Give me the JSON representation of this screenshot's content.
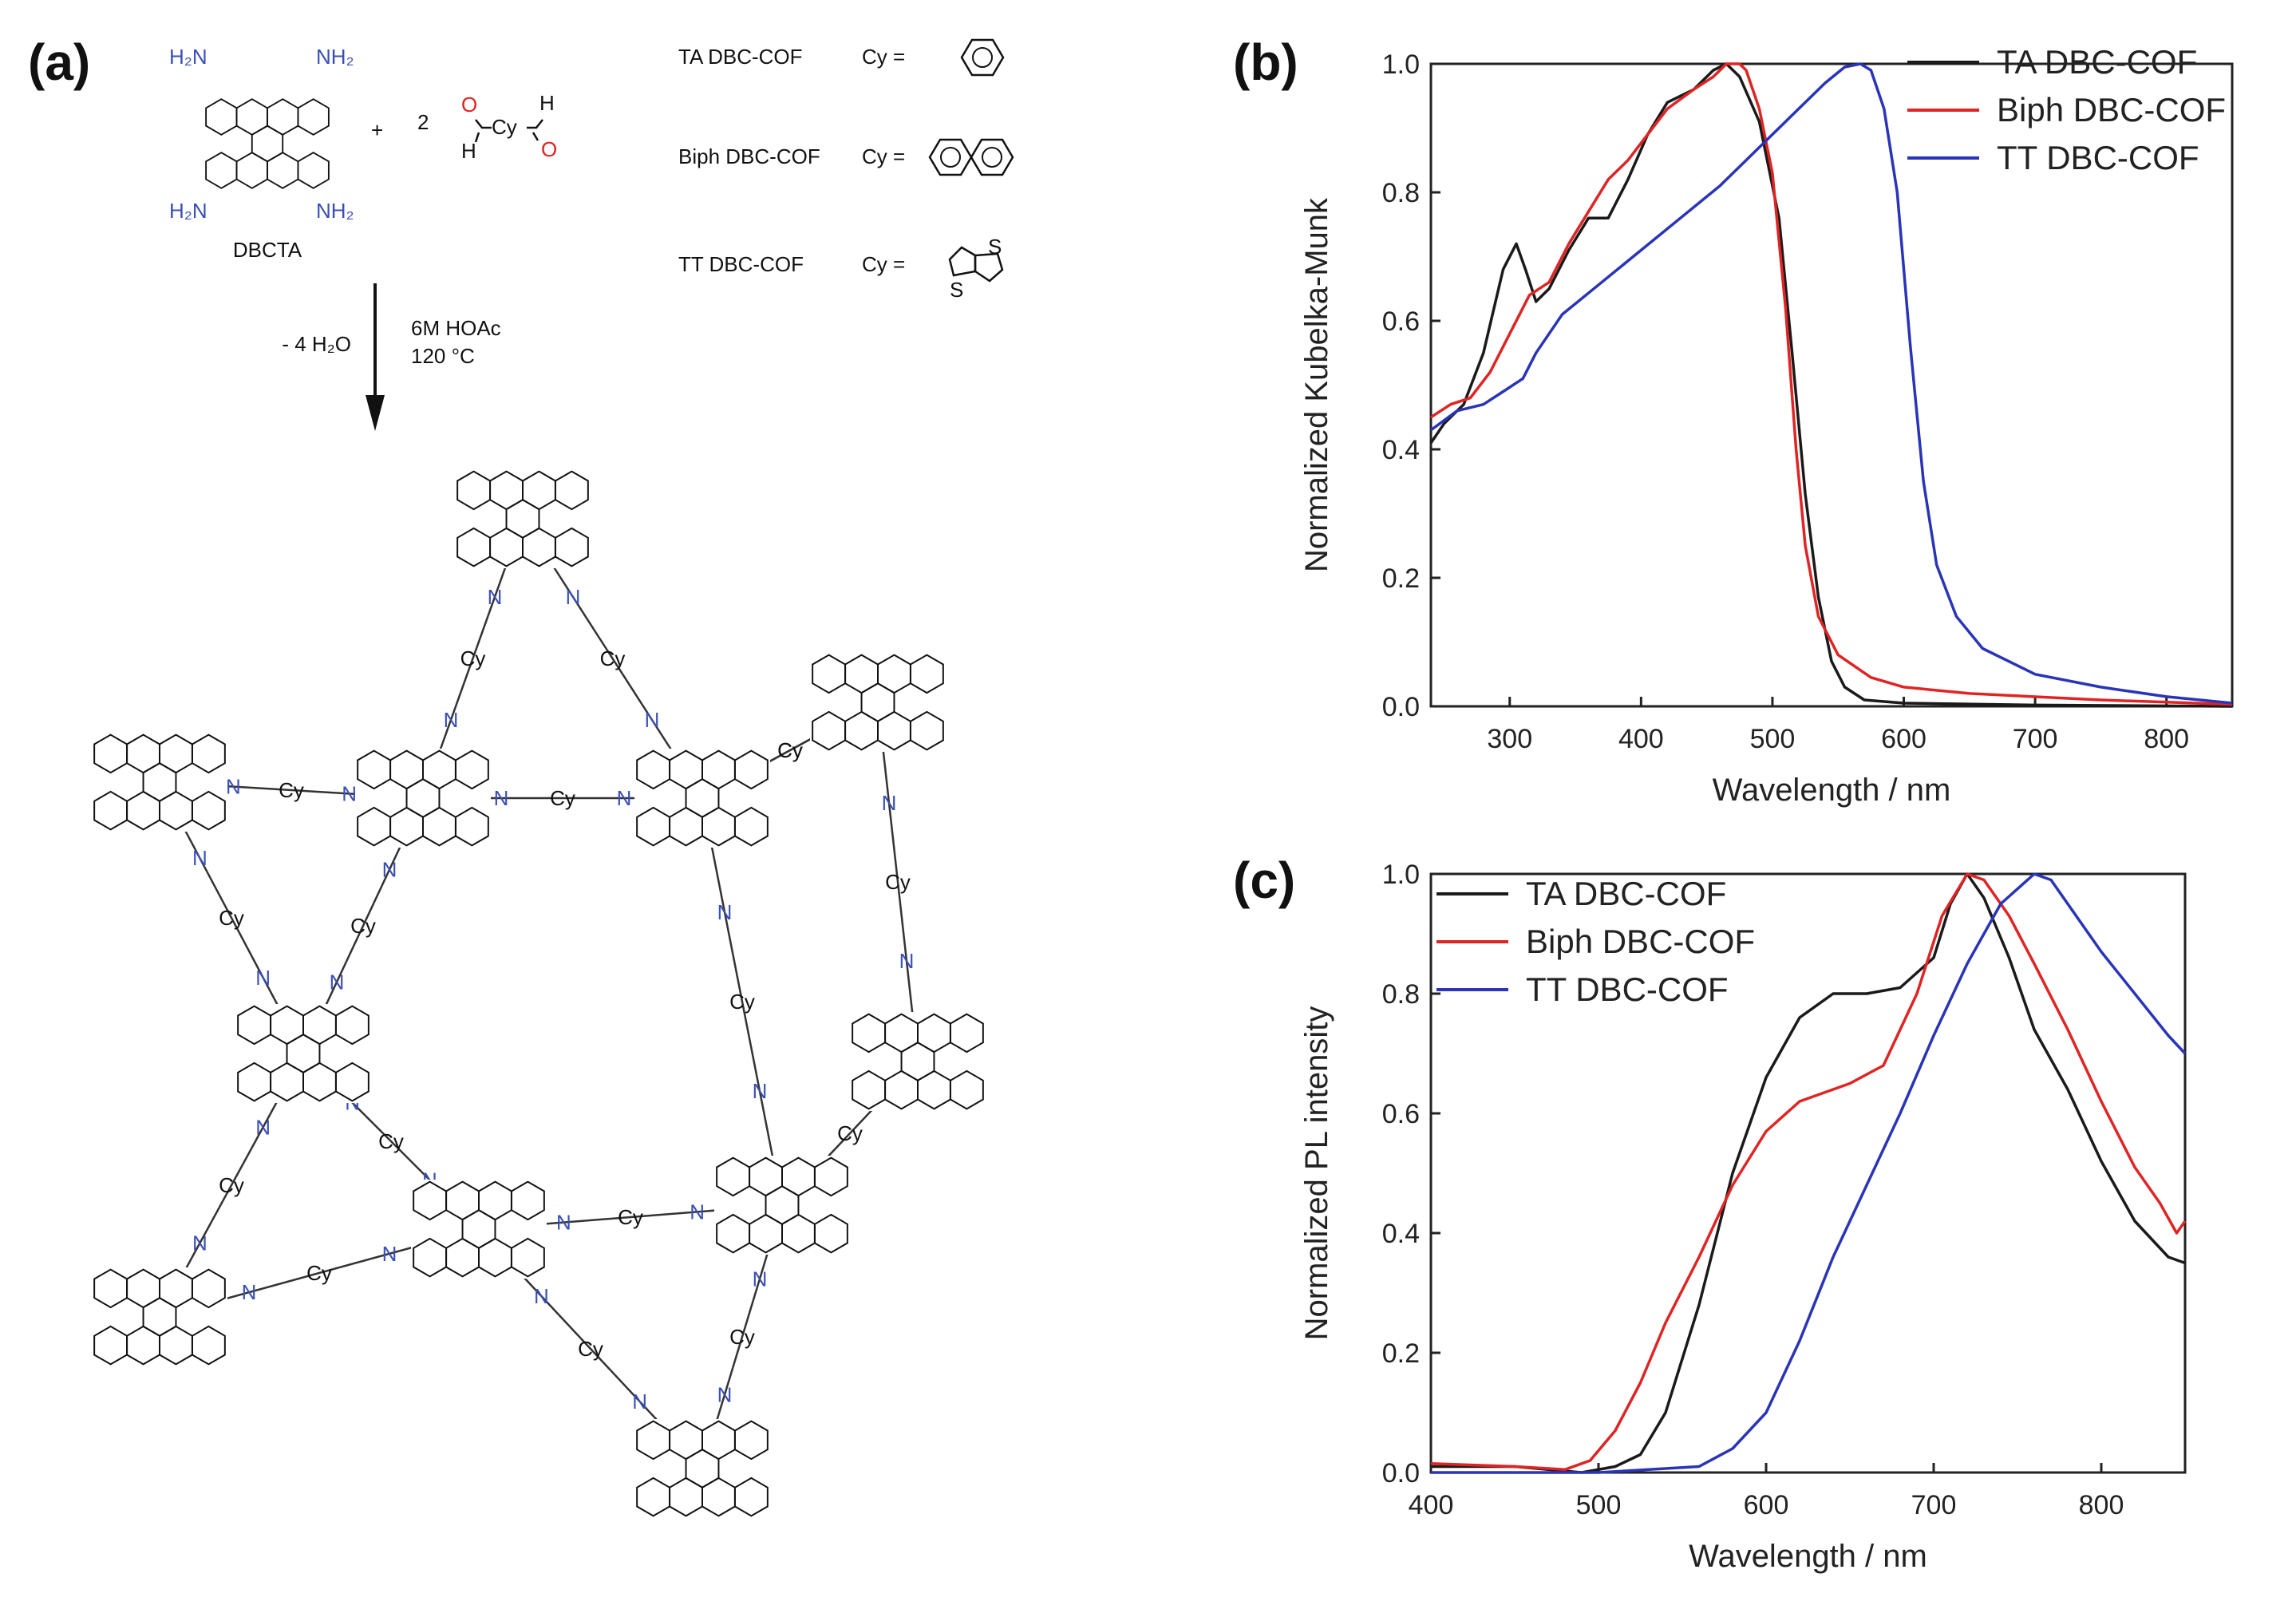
{
  "panels": {
    "a": {
      "label": "(a)",
      "reagents": {
        "amine_group": "H₂N",
        "amine_group_right": "NH₂",
        "monomer_name": "DBCTA",
        "plus": "+",
        "coefficient": "2",
        "aldehyde_h": "H",
        "aldehyde_o": "O",
        "aldehyde_cy": "Cy"
      },
      "linkers": [
        {
          "name": "TA DBC-COF",
          "cy_label": "Cy ="
        },
        {
          "name": "Biph DBC-COF",
          "cy_label": "Cy ="
        },
        {
          "name": "TT DBC-COF",
          "cy_label": "Cy ="
        }
      ],
      "thiophene_atom": "S",
      "conditions": {
        "byproduct": "- 4 H₂O",
        "acid": "6M HOAc",
        "temperature": "120 °C"
      },
      "network": {
        "cy_label": "Cy",
        "n_label": "N"
      }
    },
    "b": {
      "label": "(b)"
    },
    "c": {
      "label": "(c)"
    }
  },
  "colors": {
    "TA DBC-COF": "#1a1a1a",
    "Biph DBC-COF": "#e02424",
    "TT DBC-COF": "#2a34b8",
    "nitrogen": "#3a4fb5",
    "oxygen": "#e02020"
  },
  "chart_data": [
    {
      "id": "b",
      "type": "line",
      "xlabel": "Wavelength / nm",
      "ylabel": "Normalized Kubelka-Munk",
      "xlim": [
        240,
        850
      ],
      "ylim": [
        0.0,
        1.0
      ],
      "xticks": [
        300,
        400,
        500,
        600,
        700,
        800
      ],
      "yticks": [
        0.0,
        0.2,
        0.4,
        0.6,
        0.8,
        1.0
      ],
      "xtick_labels": [
        "300",
        "400",
        "500",
        "600",
        "700",
        "800"
      ],
      "ytick_labels": [
        "0.0",
        "0.2",
        "0.4",
        "0.6",
        "0.8",
        "1.0"
      ],
      "legend_position": "top-right",
      "series": [
        {
          "name": "TA DBC-COF",
          "x": [
            240,
            250,
            265,
            280,
            295,
            305,
            312,
            320,
            330,
            345,
            360,
            375,
            390,
            405,
            420,
            440,
            455,
            465,
            475,
            490,
            505,
            515,
            525,
            535,
            545,
            555,
            570,
            600,
            700,
            850
          ],
          "y": [
            0.41,
            0.44,
            0.47,
            0.55,
            0.68,
            0.72,
            0.68,
            0.63,
            0.65,
            0.71,
            0.76,
            0.76,
            0.82,
            0.89,
            0.94,
            0.96,
            0.99,
            1.0,
            0.98,
            0.91,
            0.76,
            0.55,
            0.33,
            0.17,
            0.07,
            0.03,
            0.01,
            0.005,
            0.002,
            0.0
          ]
        },
        {
          "name": "Biph DBC-COF",
          "x": [
            240,
            255,
            270,
            285,
            300,
            315,
            330,
            345,
            360,
            375,
            390,
            405,
            420,
            440,
            455,
            465,
            475,
            480,
            490,
            500,
            510,
            518,
            525,
            535,
            550,
            575,
            600,
            650,
            750,
            850
          ],
          "y": [
            0.45,
            0.47,
            0.48,
            0.52,
            0.58,
            0.64,
            0.66,
            0.72,
            0.77,
            0.82,
            0.85,
            0.89,
            0.93,
            0.96,
            0.98,
            1.0,
            1.0,
            0.99,
            0.93,
            0.83,
            0.62,
            0.4,
            0.25,
            0.14,
            0.08,
            0.045,
            0.03,
            0.02,
            0.01,
            0.003
          ]
        },
        {
          "name": "TT DBC-COF",
          "x": [
            240,
            260,
            280,
            295,
            310,
            320,
            340,
            370,
            400,
            430,
            460,
            480,
            500,
            520,
            540,
            555,
            567,
            575,
            585,
            595,
            605,
            615,
            625,
            640,
            660,
            700,
            750,
            800,
            850
          ],
          "y": [
            0.43,
            0.46,
            0.47,
            0.49,
            0.51,
            0.55,
            0.61,
            0.66,
            0.71,
            0.76,
            0.81,
            0.85,
            0.89,
            0.93,
            0.97,
            0.995,
            1.0,
            0.99,
            0.93,
            0.8,
            0.56,
            0.35,
            0.22,
            0.14,
            0.09,
            0.05,
            0.03,
            0.015,
            0.005
          ]
        }
      ]
    },
    {
      "id": "c",
      "type": "line",
      "xlabel": "Wavelength / nm",
      "ylabel": "Normalized PL intensity",
      "xlim": [
        400,
        850
      ],
      "ylim": [
        0.0,
        1.0
      ],
      "xticks": [
        400,
        500,
        600,
        700,
        800
      ],
      "yticks": [
        0.0,
        0.2,
        0.4,
        0.6,
        0.8,
        1.0
      ],
      "xtick_labels": [
        "400",
        "500",
        "600",
        "700",
        "800"
      ],
      "ytick_labels": [
        "0.0",
        "0.2",
        "0.4",
        "0.6",
        "0.8",
        "1.0"
      ],
      "legend_position": "top-left",
      "series": [
        {
          "name": "TA DBC-COF",
          "x": [
            400,
            450,
            490,
            510,
            525,
            540,
            560,
            580,
            600,
            620,
            640,
            660,
            680,
            700,
            710,
            720,
            730,
            745,
            760,
            780,
            800,
            820,
            840,
            850
          ],
          "y": [
            0.01,
            0.01,
            0.0,
            0.01,
            0.03,
            0.1,
            0.28,
            0.5,
            0.66,
            0.76,
            0.8,
            0.8,
            0.81,
            0.86,
            0.95,
            1.0,
            0.96,
            0.86,
            0.74,
            0.64,
            0.52,
            0.42,
            0.36,
            0.35
          ]
        },
        {
          "name": "Biph DBC-COF",
          "x": [
            400,
            450,
            480,
            495,
            510,
            525,
            540,
            560,
            580,
            600,
            620,
            650,
            670,
            690,
            705,
            720,
            730,
            745,
            760,
            780,
            800,
            820,
            835,
            845,
            850
          ],
          "y": [
            0.015,
            0.01,
            0.005,
            0.02,
            0.07,
            0.15,
            0.25,
            0.36,
            0.48,
            0.57,
            0.62,
            0.65,
            0.68,
            0.8,
            0.93,
            1.0,
            0.99,
            0.93,
            0.85,
            0.74,
            0.62,
            0.51,
            0.45,
            0.4,
            0.42
          ]
        },
        {
          "name": "TT DBC-COF",
          "x": [
            400,
            500,
            560,
            580,
            600,
            620,
            640,
            660,
            680,
            700,
            720,
            740,
            760,
            770,
            780,
            800,
            820,
            840,
            850
          ],
          "y": [
            0.0,
            0.0,
            0.01,
            0.04,
            0.1,
            0.22,
            0.36,
            0.48,
            0.6,
            0.73,
            0.85,
            0.95,
            1.0,
            0.99,
            0.95,
            0.87,
            0.8,
            0.73,
            0.7
          ]
        }
      ]
    }
  ]
}
